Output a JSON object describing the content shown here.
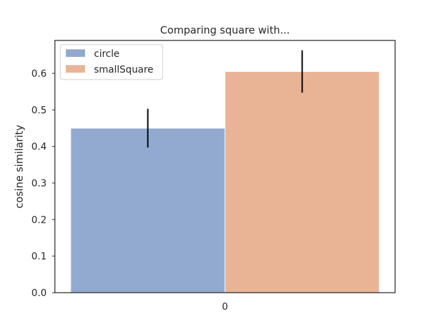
{
  "chart_data": {
    "type": "bar",
    "title": "Comparing square with...",
    "xlabel": "",
    "ylabel": "cosine similarity",
    "categories": [
      "0"
    ],
    "series": [
      {
        "name": "circle",
        "values": [
          0.45
        ],
        "error": [
          0.053
        ],
        "color": "#92aacf"
      },
      {
        "name": "smallSquare",
        "values": [
          0.605
        ],
        "error": [
          0.058
        ],
        "color": "#e9b496"
      }
    ],
    "ylim": [
      0.0,
      0.69
    ],
    "yticks": [
      0.0,
      0.1,
      0.2,
      0.3,
      0.4,
      0.5,
      0.6
    ],
    "ytick_labels": [
      "0.0",
      "0.1",
      "0.2",
      "0.3",
      "0.4",
      "0.5",
      "0.6"
    ],
    "grid": false,
    "legend_position": "top-left"
  }
}
